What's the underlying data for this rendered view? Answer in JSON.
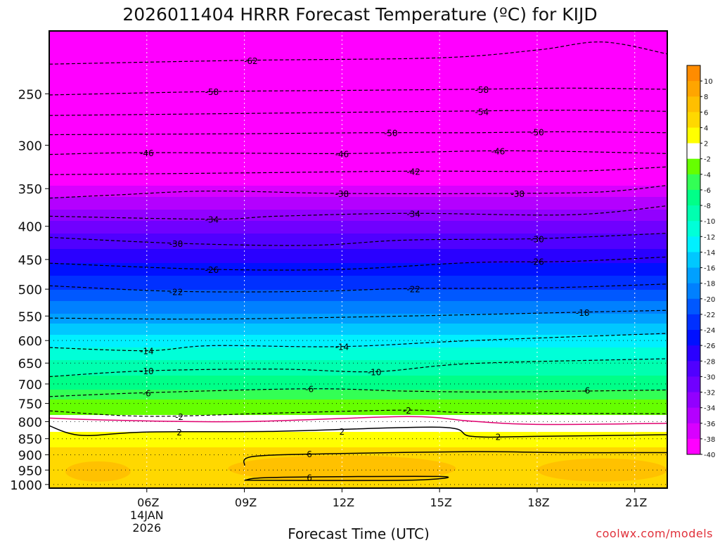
{
  "chart_data": {
    "type": "heatmap",
    "title": "2026011404 HRRR Forecast Temperature (ºC) for KIJD",
    "xlabel": "Forecast Time (UTC)",
    "ylabel": "",
    "credit": "coolwx.com/models",
    "x_ticks": [
      {
        "hour": 6,
        "label": "06Z",
        "sub": [
          "14JAN",
          "2026"
        ]
      },
      {
        "hour": 9,
        "label": "09Z",
        "sub": []
      },
      {
        "hour": 12,
        "label": "12Z",
        "sub": []
      },
      {
        "hour": 15,
        "label": "15Z",
        "sub": []
      },
      {
        "hour": 18,
        "label": "18Z",
        "sub": []
      },
      {
        "hour": 21,
        "label": "21Z",
        "sub": []
      }
    ],
    "xlim": [
      3,
      22
    ],
    "y_ticks": [
      250,
      300,
      350,
      400,
      450,
      500,
      550,
      600,
      650,
      700,
      750,
      800,
      850,
      900,
      950,
      1000
    ],
    "y_scale": "log",
    "ylim": [
      1013,
      200
    ],
    "grid": true,
    "legend": "right",
    "colorbar": {
      "labels": [
        "10",
        "8",
        "6",
        "4",
        "2",
        "-2",
        "-4",
        "-6",
        "-8",
        "-10",
        "-12",
        "-14",
        "-16",
        "-18",
        "-20",
        "-22",
        "-24",
        "-26",
        "-28",
        "-30",
        "-32",
        "-34",
        "-36",
        "-38",
        "-40"
      ],
      "colors": [
        "#ff8c00",
        "#ffa500",
        "#ffbf00",
        "#ffd800",
        "#ffff00",
        "#ffffff",
        "#66ff00",
        "#33ff55",
        "#00ff88",
        "#00ffb0",
        "#00ffd8",
        "#00f0ff",
        "#00c8ff",
        "#00a0ff",
        "#0080ff",
        "#0058ff",
        "#0030ff",
        "#0010ff",
        "#2a00ff",
        "#5000ff",
        "#7000ff",
        "#9200ff",
        "#b400ff",
        "#d800ff",
        "#ff00ff"
      ]
    },
    "profile": [
      {
        "p": 1000,
        "t": 4
      },
      {
        "p": 950,
        "t": 5
      },
      {
        "p": 900,
        "t": 5
      },
      {
        "p": 850,
        "t": 3
      },
      {
        "p": 820,
        "t": 1.5
      },
      {
        "p": 800,
        "t": 0
      },
      {
        "p": 780,
        "t": -2
      },
      {
        "p": 750,
        "t": -3
      },
      {
        "p": 720,
        "t": -5.5
      },
      {
        "p": 700,
        "t": -7
      },
      {
        "p": 650,
        "t": -9.5
      },
      {
        "p": 600,
        "t": -13
      },
      {
        "p": 550,
        "t": -17.5
      },
      {
        "p": 500,
        "t": -22
      },
      {
        "p": 450,
        "t": -26.5
      },
      {
        "p": 400,
        "t": -31
      },
      {
        "p": 350,
        "t": -37.5
      },
      {
        "p": 300,
        "t": -45
      },
      {
        "p": 250,
        "t": -55
      },
      {
        "p": 200,
        "t": -64
      }
    ],
    "contours": [
      {
        "value": -62,
        "label": "-62",
        "style": "dashed",
        "color": "#000000",
        "points": [
          [
            3,
            225
          ],
          [
            9,
            222
          ],
          [
            15,
            220
          ],
          [
            18,
            214
          ],
          [
            20,
            208
          ],
          [
            22,
            217
          ]
        ],
        "labels_at": [
          [
            9.2,
            222
          ]
        ]
      },
      {
        "value": -58,
        "label": "-58",
        "style": "dashed",
        "color": "#000000",
        "points": [
          [
            3,
            251
          ],
          [
            8,
            248
          ],
          [
            12,
            247
          ],
          [
            16,
            246
          ],
          [
            19,
            245
          ],
          [
            22,
            246
          ]
        ],
        "labels_at": [
          [
            8,
            248
          ],
          [
            16.3,
            246
          ]
        ]
      },
      {
        "value": -54,
        "label": "-54",
        "style": "dashed",
        "color": "#000000",
        "points": [
          [
            3,
            270
          ],
          [
            9,
            268
          ],
          [
            15,
            266
          ],
          [
            19,
            265
          ],
          [
            22,
            266
          ]
        ],
        "labels_at": [
          [
            16.3,
            266
          ]
        ]
      },
      {
        "value": -50,
        "label": "-50",
        "style": "dashed",
        "color": "#000000",
        "points": [
          [
            3,
            289
          ],
          [
            9,
            288
          ],
          [
            13,
            287
          ],
          [
            16,
            287
          ],
          [
            19,
            286
          ],
          [
            22,
            287
          ]
        ],
        "labels_at": [
          [
            13.5,
            287
          ],
          [
            18,
            286
          ]
        ]
      },
      {
        "value": -46,
        "label": "-46",
        "style": "dashed",
        "color": "#000000",
        "points": [
          [
            3,
            310
          ],
          [
            6,
            308
          ],
          [
            12,
            309
          ],
          [
            17,
            306
          ],
          [
            22,
            309
          ]
        ],
        "labels_at": [
          [
            6,
            308
          ],
          [
            12,
            309
          ],
          [
            16.8,
            306
          ]
        ]
      },
      {
        "value": -42,
        "label": "-42",
        "style": "dashed",
        "color": "#000000",
        "points": [
          [
            3,
            333
          ],
          [
            9,
            331
          ],
          [
            14,
            329
          ],
          [
            19,
            329
          ],
          [
            22,
            324
          ]
        ],
        "labels_at": [
          [
            14.2,
            329
          ]
        ]
      },
      {
        "value": -38,
        "label": "-38",
        "style": "dashed",
        "color": "#000000",
        "points": [
          [
            3,
            362
          ],
          [
            5,
            358
          ],
          [
            8,
            353
          ],
          [
            12,
            356
          ],
          [
            17,
            356
          ],
          [
            20,
            354
          ],
          [
            22,
            346
          ]
        ],
        "labels_at": [
          [
            12,
            356
          ],
          [
            17.4,
            356
          ]
        ]
      },
      {
        "value": -34,
        "label": "-34",
        "style": "dashed",
        "color": "#000000",
        "points": [
          [
            3,
            386
          ],
          [
            8,
            390
          ],
          [
            10,
            386
          ],
          [
            14,
            382
          ],
          [
            19,
            384
          ],
          [
            22,
            372
          ]
        ],
        "labels_at": [
          [
            8,
            390
          ],
          [
            14.2,
            382
          ]
        ]
      },
      {
        "value": -30,
        "label": "-30",
        "style": "dashed",
        "color": "#000000",
        "points": [
          [
            3,
            416
          ],
          [
            7,
            425
          ],
          [
            11,
            428
          ],
          [
            14,
            420
          ],
          [
            18,
            418
          ],
          [
            22,
            410
          ]
        ],
        "labels_at": [
          [
            6.9,
            425
          ],
          [
            18,
            418
          ]
        ]
      },
      {
        "value": -26,
        "label": "-26",
        "style": "dashed",
        "color": "#000000",
        "points": [
          [
            3,
            456
          ],
          [
            8,
            466
          ],
          [
            12,
            466
          ],
          [
            16,
            455
          ],
          [
            19,
            453
          ],
          [
            22,
            446
          ]
        ],
        "labels_at": [
          [
            8,
            466
          ],
          [
            18,
            453
          ]
        ]
      },
      {
        "value": -22,
        "label": "-22",
        "style": "dashed",
        "color": "#000000",
        "points": [
          [
            3,
            494
          ],
          [
            7,
            504
          ],
          [
            11,
            504
          ],
          [
            14,
            499
          ],
          [
            18,
            498
          ],
          [
            22,
            491
          ]
        ],
        "labels_at": [
          [
            6.9,
            504
          ],
          [
            14.2,
            499
          ]
        ]
      },
      {
        "value": -18,
        "label": "-18",
        "style": "dashed",
        "color": "#000000",
        "points": [
          [
            3,
            554
          ],
          [
            8,
            556
          ],
          [
            14,
            550
          ],
          [
            19,
            543
          ],
          [
            22,
            539
          ]
        ],
        "labels_at": [
          [
            19.4,
            543
          ]
        ]
      },
      {
        "value": -14,
        "label": "-14",
        "style": "dashed",
        "color": "#000000",
        "points": [
          [
            3,
            615
          ],
          [
            6,
            622
          ],
          [
            8,
            611
          ],
          [
            12,
            613
          ],
          [
            16,
            600
          ],
          [
            22,
            585
          ]
        ],
        "labels_at": [
          [
            6,
            622
          ],
          [
            12,
            613
          ]
        ]
      },
      {
        "value": -10,
        "label": "-10",
        "style": "dashed",
        "color": "#000000",
        "points": [
          [
            3,
            682
          ],
          [
            6,
            668
          ],
          [
            10,
            664
          ],
          [
            13,
            670
          ],
          [
            16,
            651
          ],
          [
            22,
            640
          ]
        ],
        "labels_at": [
          [
            6,
            668
          ],
          [
            13,
            670
          ]
        ]
      },
      {
        "value": -6,
        "label": "-6",
        "style": "dashed",
        "color": "#000000",
        "points": [
          [
            3,
            732
          ],
          [
            6,
            722
          ],
          [
            11,
            712
          ],
          [
            14,
            718
          ],
          [
            17,
            720
          ],
          [
            22,
            715
          ]
        ],
        "labels_at": [
          [
            6,
            722
          ],
          [
            11,
            712
          ],
          [
            19.5,
            715
          ]
        ]
      },
      {
        "value": -2,
        "label": "-2",
        "style": "dashed",
        "color": "#000000",
        "points": [
          [
            3,
            770
          ],
          [
            6,
            785
          ],
          [
            10,
            776
          ],
          [
            14,
            768
          ],
          [
            16,
            775
          ],
          [
            22,
            778
          ]
        ],
        "labels_at": [
          [
            7,
            785
          ],
          [
            14,
            768
          ]
        ]
      },
      {
        "value": 0,
        "label": "",
        "style": "solid",
        "color": "#e0006f",
        "points": [
          [
            3,
            790
          ],
          [
            5,
            796
          ],
          [
            9,
            800
          ],
          [
            14,
            786
          ],
          [
            16,
            799
          ],
          [
            18,
            808
          ],
          [
            22,
            805
          ]
        ],
        "labels_at": []
      },
      {
        "value": 2,
        "label": "2",
        "style": "solid",
        "color": "#000000",
        "points": [
          [
            3,
            812
          ],
          [
            4,
            840
          ],
          [
            6,
            830
          ],
          [
            10,
            828
          ],
          [
            15,
            816
          ],
          [
            16,
            843
          ],
          [
            18,
            843
          ],
          [
            22,
            838
          ]
        ],
        "labels_at": [
          [
            7,
            830
          ],
          [
            12,
            828
          ],
          [
            16.8,
            843
          ]
        ]
      },
      {
        "value": 6,
        "label": "6",
        "style": "solid",
        "color": "#000000",
        "points": [
          [
            9,
            935
          ],
          [
            9.3,
            905
          ],
          [
            12,
            896
          ],
          [
            16,
            890
          ],
          [
            19,
            893
          ],
          [
            22,
            893
          ]
        ],
        "labels_at": [
          [
            11,
            896
          ]
        ]
      },
      {
        "value": 6,
        "label": "6",
        "style": "solid",
        "color": "#000000",
        "points": [
          [
            9,
            985
          ],
          [
            10,
            975
          ],
          [
            15,
            972
          ],
          [
            14,
            985
          ],
          [
            9,
            985
          ]
        ],
        "labels_at": [
          [
            11,
            975
          ]
        ]
      }
    ],
    "warm_patches": [
      {
        "center": [
          4.5,
          955
        ],
        "rx": 1.0,
        "rp": 35,
        "t": 6
      },
      {
        "center": [
          12,
          945
        ],
        "rx": 3.5,
        "rp": 45,
        "t": 6
      },
      {
        "center": [
          20,
          950
        ],
        "rx": 2.0,
        "rp": 40,
        "t": 6
      }
    ]
  }
}
